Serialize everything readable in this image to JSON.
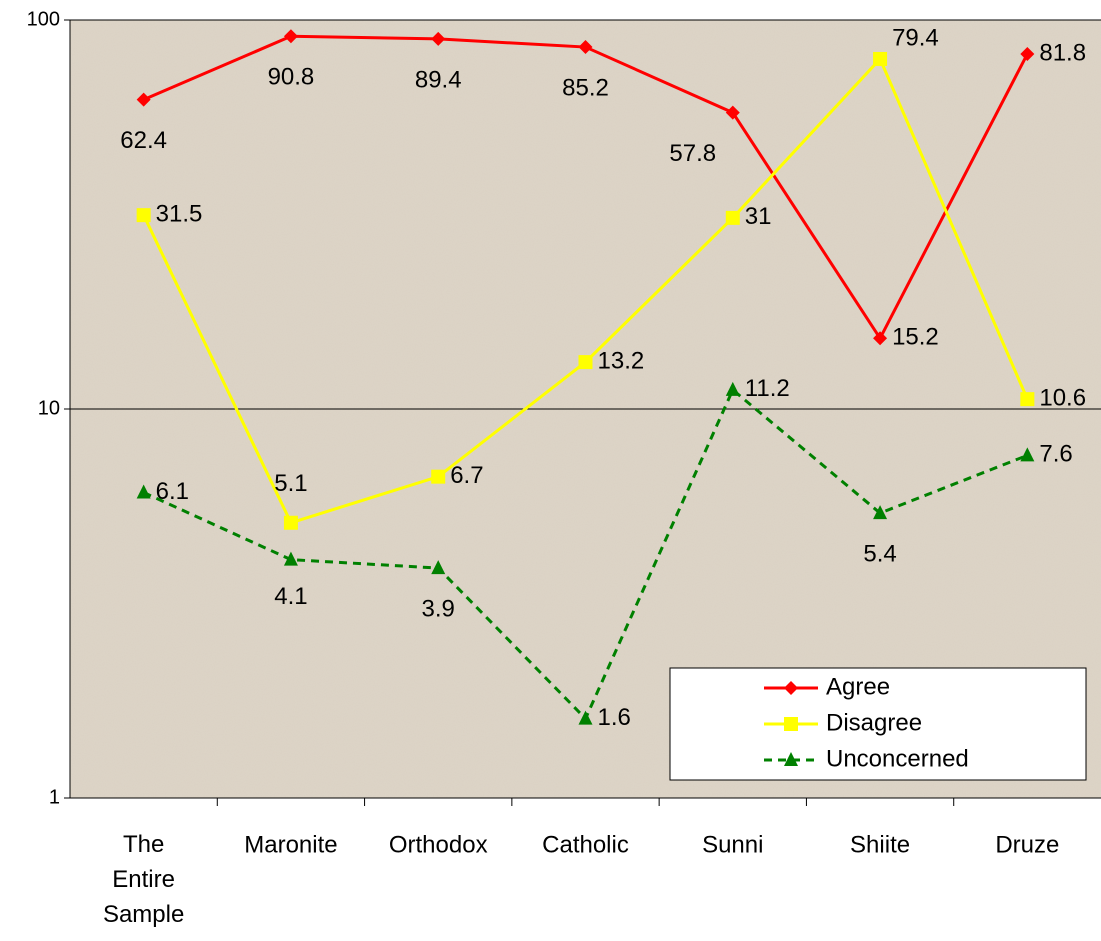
{
  "chart_data": {
    "type": "line",
    "categories": [
      "The Entire Sample",
      "Maronite",
      "Orthodox",
      "Catholic",
      "Sunni",
      "Shiite",
      "Druze"
    ],
    "series": [
      {
        "name": "Agree",
        "color": "#ff0000",
        "marker": "diamond",
        "dashed": false,
        "values": [
          62.4,
          90.8,
          89.4,
          85.2,
          57.8,
          15.2,
          81.8
        ]
      },
      {
        "name": "Disagree",
        "color": "#ffff00",
        "marker": "square",
        "dashed": false,
        "values": [
          31.5,
          5.1,
          6.7,
          13.2,
          31,
          79.4,
          10.6
        ]
      },
      {
        "name": "Unconcerned",
        "color": "#008000",
        "marker": "triangle",
        "dashed": true,
        "values": [
          6.1,
          4.1,
          3.9,
          1.6,
          11.2,
          5.4,
          7.6
        ]
      }
    ],
    "ylim": [
      1,
      100
    ],
    "yticks": [
      1,
      10,
      100
    ],
    "log_scale": true,
    "grid": true,
    "legend": "lower right"
  }
}
